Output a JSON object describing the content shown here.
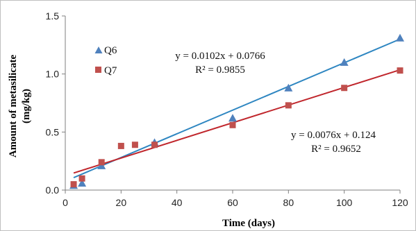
{
  "chart_data": {
    "type": "scatter",
    "title": "",
    "xlabel": "Time (days)",
    "ylabel": "Amount of metasilicate (mg/kg)",
    "ylabel_lines": [
      "Amount of metasilicate",
      "(mg/kg)"
    ],
    "xlim": [
      0,
      120
    ],
    "ylim": [
      0,
      1.5
    ],
    "x_ticks": [
      0,
      20,
      40,
      60,
      80,
      100,
      120
    ],
    "y_ticks": [
      0.0,
      0.5,
      1.0,
      1.5
    ],
    "y_tick_labels": [
      "0.0",
      "0.5",
      "1.0",
      "1.5"
    ],
    "grid": false,
    "legend_position": "top-left",
    "series": [
      {
        "name": "Q6",
        "marker": "triangle",
        "color": "#4f81bd",
        "line_color": "#2e86c1",
        "x": [
          3,
          6,
          13,
          32,
          60,
          80,
          100,
          120
        ],
        "y": [
          0.04,
          0.06,
          0.21,
          0.41,
          0.62,
          0.88,
          1.1,
          1.31
        ],
        "trendline": {
          "slope": 0.0102,
          "intercept": 0.0766,
          "equation": "y = 0.0102x + 0.0766",
          "r2": "R² = 0.9855"
        }
      },
      {
        "name": "Q7",
        "marker": "square",
        "color": "#c0504d",
        "line_color": "#c0262c",
        "x": [
          3,
          6,
          13,
          20,
          25,
          32,
          60,
          80,
          100,
          120
        ],
        "y": [
          0.05,
          0.1,
          0.24,
          0.38,
          0.39,
          0.39,
          0.56,
          0.73,
          0.88,
          1.03
        ],
        "trendline": {
          "slope": 0.0076,
          "intercept": 0.124,
          "equation": "y = 0.0076x + 0.124",
          "r2": "R² = 0.9652"
        }
      }
    ]
  }
}
